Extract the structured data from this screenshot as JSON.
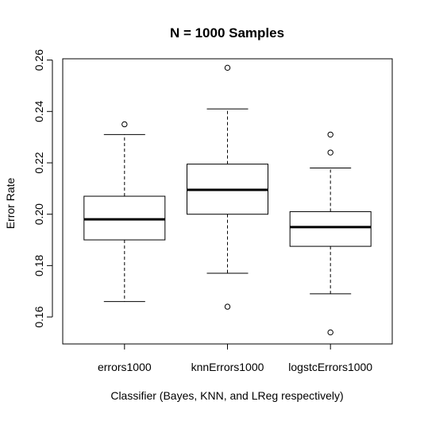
{
  "chart_data": {
    "type": "boxplot",
    "title": "N = 1000 Samples",
    "xlabel": "Classifier (Bayes, KNN, and LReg respectively)",
    "ylabel": "Error Rate",
    "ylim": [
      0.1495,
      0.2605
    ],
    "yticks": [
      "0.16",
      "0.18",
      "0.20",
      "0.22",
      "0.24",
      "0.26"
    ],
    "ytick_values": [
      0.16,
      0.18,
      0.2,
      0.22,
      0.24,
      0.26
    ],
    "categories": [
      "errors1000",
      "knnErrors1000",
      "logstcErrors1000"
    ],
    "boxes": [
      {
        "name": "errors1000",
        "whisker_low": 0.166,
        "q1": 0.19,
        "median": 0.198,
        "q3": 0.207,
        "whisker_high": 0.231,
        "outliers": [
          0.235
        ]
      },
      {
        "name": "knnErrors1000",
        "whisker_low": 0.177,
        "q1": 0.2,
        "median": 0.2095,
        "q3": 0.2195,
        "whisker_high": 0.241,
        "outliers": [
          0.257,
          0.164
        ]
      },
      {
        "name": "logstcErrors1000",
        "whisker_low": 0.169,
        "q1": 0.1875,
        "median": 0.195,
        "q3": 0.201,
        "whisker_high": 0.218,
        "outliers": [
          0.231,
          0.224,
          0.154
        ]
      }
    ],
    "grid": false,
    "legend": "none"
  }
}
